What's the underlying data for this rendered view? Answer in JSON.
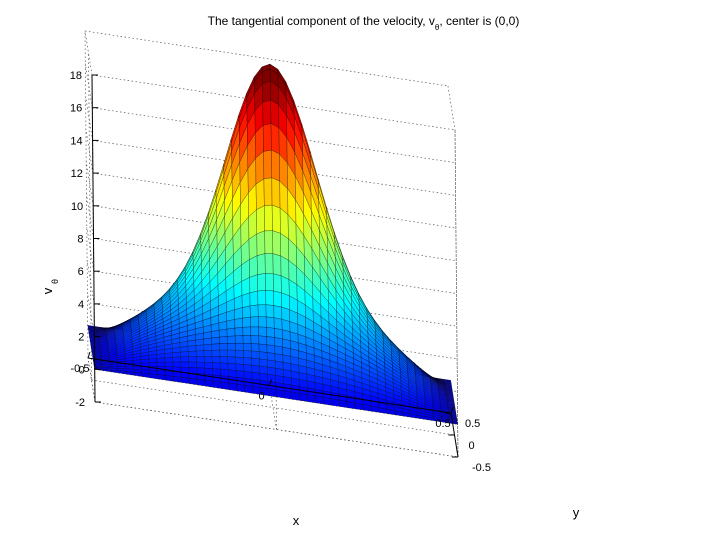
{
  "chart_data": {
    "type": "surface",
    "title": {
      "before": "The tangential component of the velocity, v",
      "subscript": "θ",
      "after": ", center is (0,0)"
    },
    "xlabel": "x",
    "ylabel": "y",
    "zlabel": "v",
    "zlabel_subscript": "θ",
    "x_ticks": [
      "-0.5",
      "0",
      "0.5"
    ],
    "y_ticks": [
      "-0.5",
      "0",
      "0.5"
    ],
    "z_ticks": [
      "-2",
      "0",
      "2",
      "4",
      "6",
      "8",
      "10",
      "12",
      "14",
      "16",
      "18"
    ],
    "xlim": [
      -0.5,
      0.5
    ],
    "ylim": [
      -0.5,
      0.5
    ],
    "zlim": [
      -2,
      18
    ],
    "grid": true,
    "colormap": "jet",
    "center": [
      0,
      0
    ],
    "peak_value": 19,
    "corner_value": 0,
    "edge_midpoint_value": 5.5
  }
}
